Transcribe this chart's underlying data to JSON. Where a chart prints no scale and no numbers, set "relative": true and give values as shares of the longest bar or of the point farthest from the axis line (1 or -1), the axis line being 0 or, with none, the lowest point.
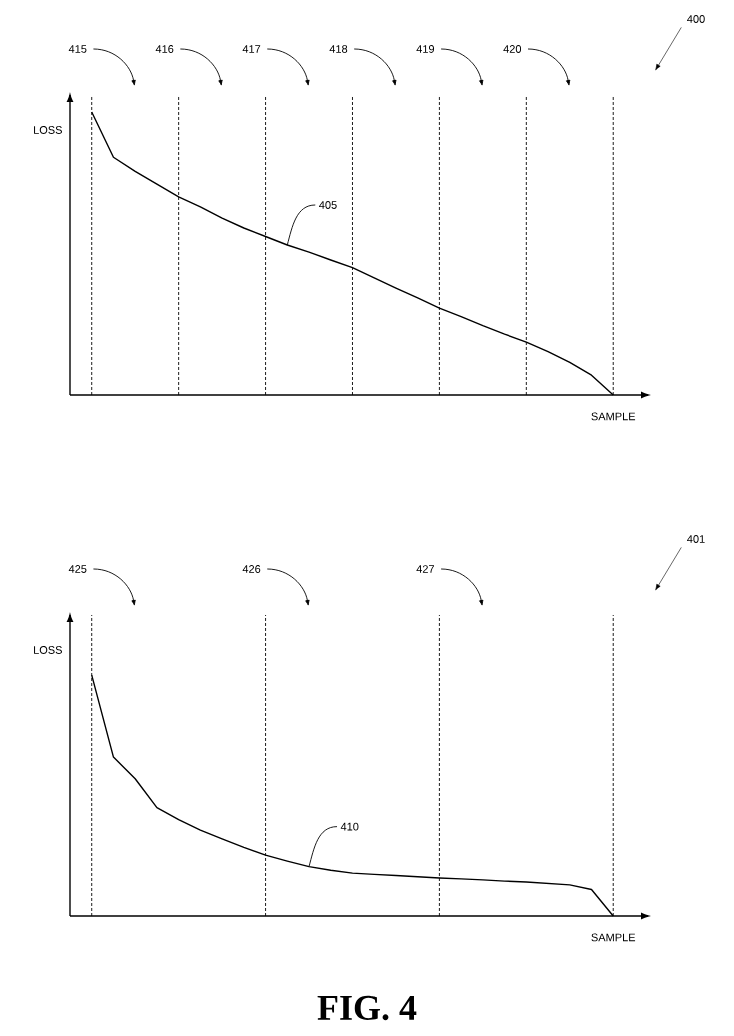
{
  "chart_data": [
    {
      "type": "line",
      "relative": true,
      "ylabel": "LOSS",
      "xlabel": "SAMPLE",
      "grid": "x",
      "categories": [
        null,
        null,
        null,
        null,
        null,
        null,
        null,
        null,
        null,
        null,
        null,
        null,
        null,
        null,
        null,
        null,
        null,
        null,
        null,
        null,
        null,
        null,
        null,
        null,
        null
      ],
      "series": [
        {
          "color": "#000000",
          "values": [
            1,
            0.84,
            0.79,
            0.745,
            0.7,
            0.665,
            0.625,
            0.59,
            0.56,
            0.53,
            0.505,
            0.477,
            0.45,
            0.414,
            0.378,
            0.343,
            0.307,
            0.277,
            0.245,
            0.215,
            0.187,
            0.153,
            0.115,
            0.07,
            0
          ]
        }
      ],
      "annotations": [
        "415",
        "416",
        "417",
        "418",
        "419",
        "420",
        "400",
        "405"
      ]
    },
    {
      "type": "line",
      "relative": true,
      "ylabel": "LOSS",
      "xlabel": "SAMPLE",
      "grid": "x",
      "categories": [
        null,
        null,
        null,
        null,
        null,
        null,
        null,
        null,
        null,
        null,
        null,
        null,
        null,
        null,
        null,
        null,
        null,
        null,
        null,
        null,
        null,
        null,
        null,
        null,
        null
      ],
      "series": [
        {
          "color": "#000000",
          "values": [
            1,
            0.66,
            0.57,
            0.45,
            0.4,
            0.357,
            0.32,
            0.285,
            0.253,
            0.228,
            0.205,
            0.19,
            0.178,
            0.173,
            0.168,
            0.163,
            0.158,
            0.154,
            0.15,
            0.145,
            0.141,
            0.135,
            0.129,
            0.11,
            0
          ]
        }
      ],
      "annotations": [
        "425",
        "426",
        "427",
        "401",
        "410",
        "FIG. 4"
      ]
    }
  ]
}
